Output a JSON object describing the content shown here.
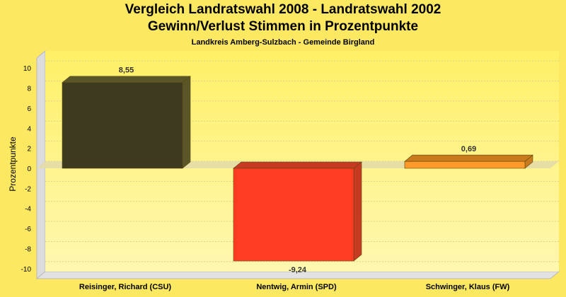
{
  "chart_data": {
    "type": "bar",
    "title": "Vergleich Landratswahl 2008 - Landratswahl 2002",
    "title_line2": "Gewinn/Verlust Stimmen in Prozentpunkte",
    "subtitle": "Landkreis Amberg-Sulzbach - Gemeinde Birgland",
    "ylabel": "Prozentpunkte",
    "xlabel": "",
    "categories": [
      "Reisinger, Richard (CSU)",
      "Nentwig, Armin (SPD)",
      "Schwinger, Klaus (FW)"
    ],
    "values": [
      8.55,
      -9.24,
      0.69
    ],
    "value_labels": [
      "8,55",
      "-9,24",
      "0,69"
    ],
    "ylim": [
      -11,
      11
    ],
    "yticks": [
      10,
      8,
      6,
      4,
      2,
      0,
      -2,
      -4,
      -6,
      -8,
      -10
    ],
    "colors": [
      "#3d3a1f",
      "#ff3c22",
      "#ff9a2a"
    ],
    "colors_side": [
      "#5a5628",
      "#c73a22",
      "#c97a1c"
    ],
    "grid": true,
    "legend": "none"
  }
}
